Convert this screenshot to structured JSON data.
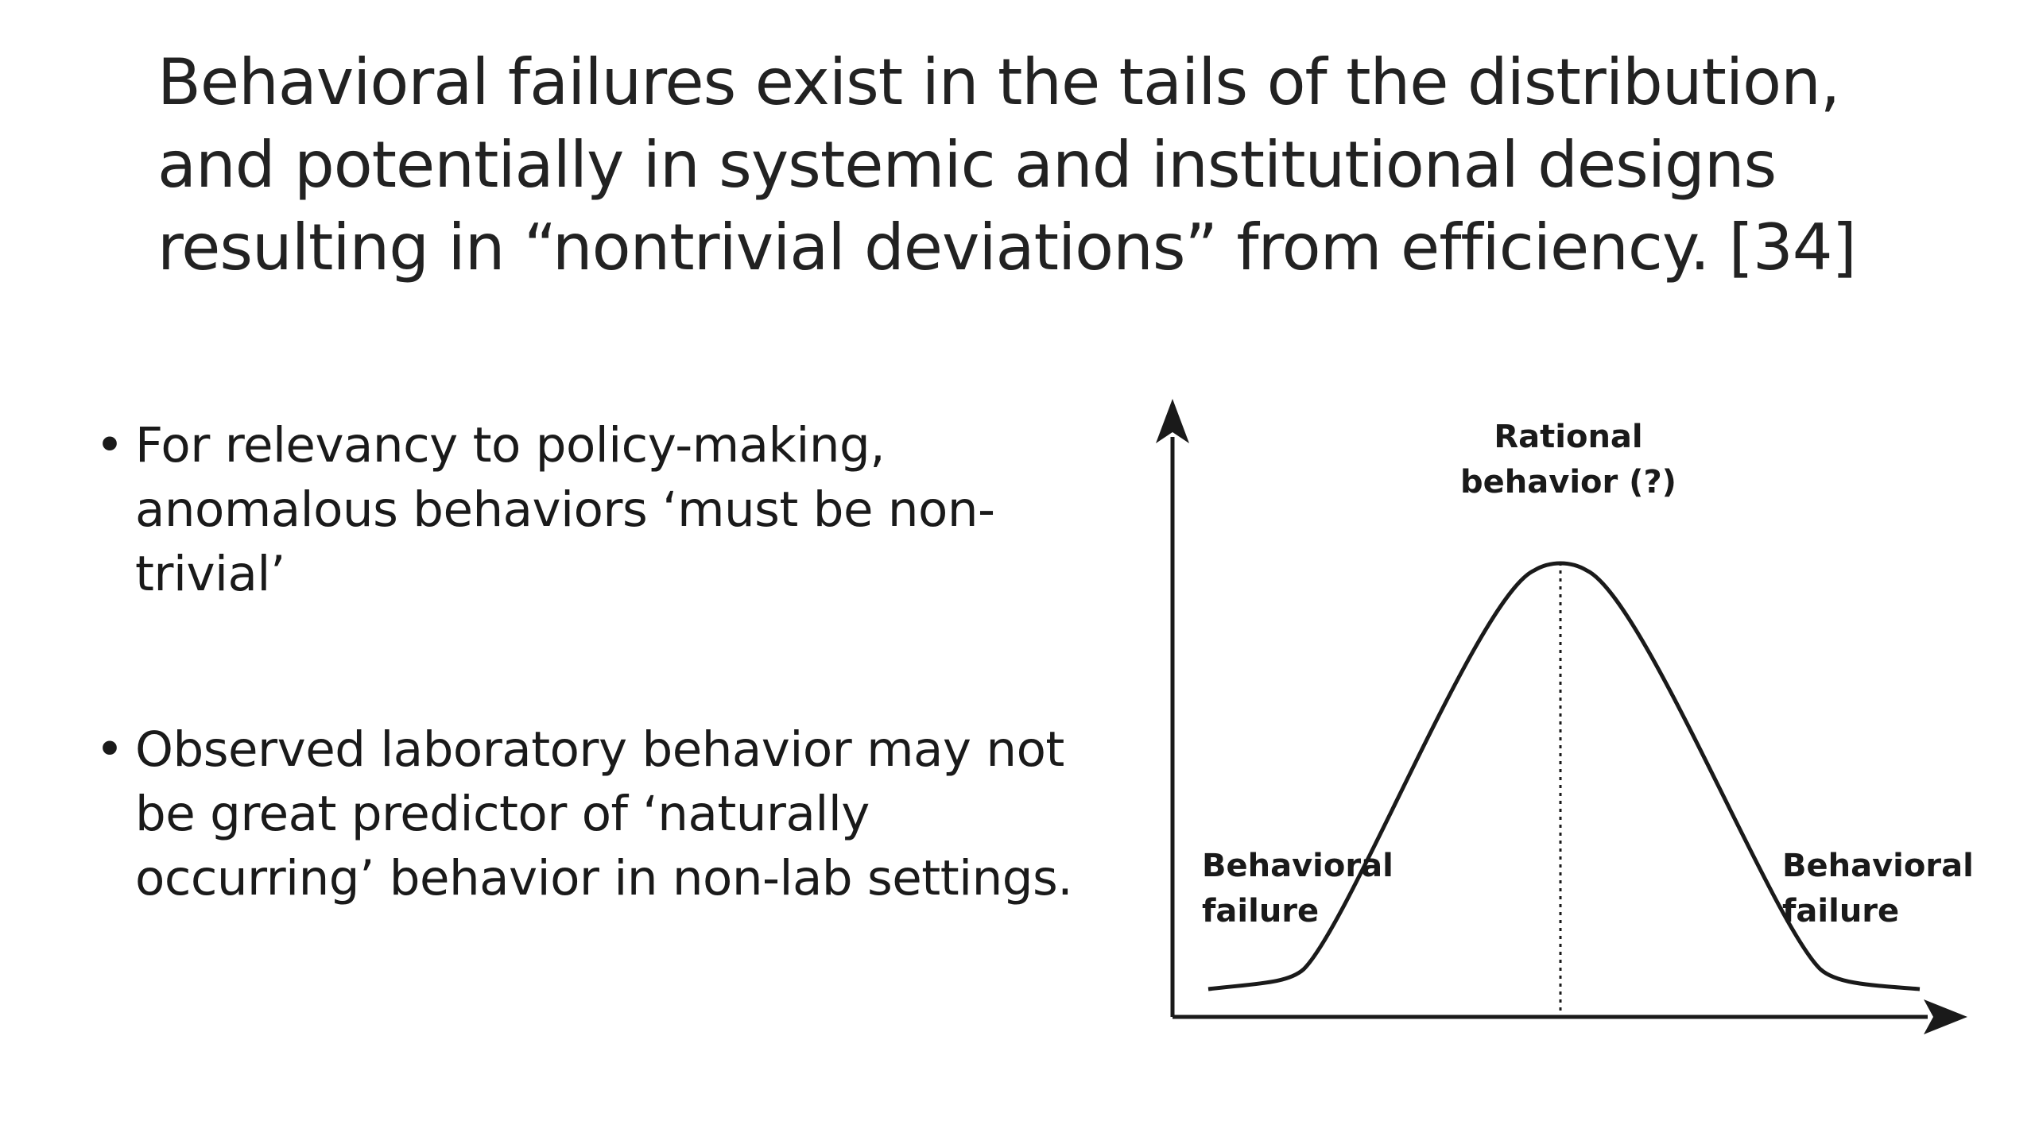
{
  "slide": {
    "title_lines": [
      "Behavioral failures exist in the tails of the distribution,",
      "and potentially in systemic and institutional designs",
      "resulting in “nontrivial deviations” from efficiency. [34]"
    ]
  },
  "bullets": [
    {
      "marker": "•",
      "lines": [
        "For relevancy to policy-making,",
        "anomalous behaviors ‘must be non-",
        "trivial’"
      ]
    },
    {
      "marker": "•",
      "lines": [
        "Observed laboratory behavior may not",
        "be great predictor of ‘naturally",
        "occurring’ behavior in non-lab settings."
      ]
    }
  ],
  "diagram": {
    "shape": "bell-curve",
    "peak_label": [
      "Rational",
      "behavior (?)"
    ],
    "left_tail_label": [
      "Behavioral",
      "failure"
    ],
    "right_tail_label": [
      "Behavioral",
      "failure"
    ],
    "line_color": "#1a1a1a"
  }
}
